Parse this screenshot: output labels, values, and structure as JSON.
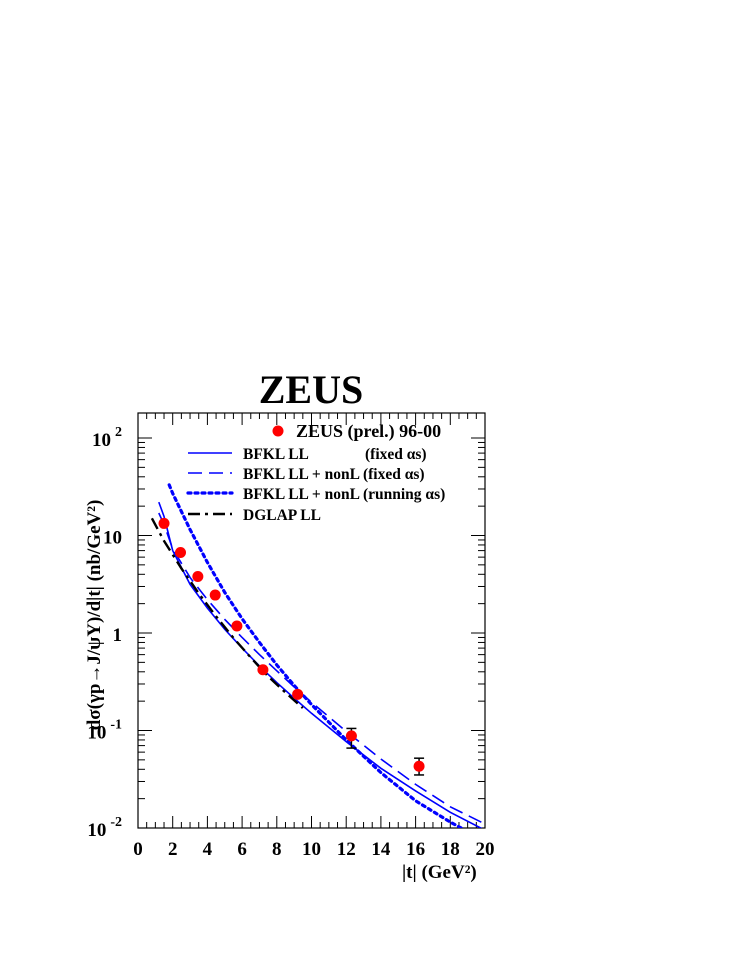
{
  "chart_data": {
    "type": "scatter",
    "title": "ZEUS",
    "xlabel": "|t| (GeV²)",
    "ylabel": "dσ(γp→J/ψY)/d|t| (nb/GeV²)",
    "xlim": [
      0,
      20
    ],
    "ylim": [
      0.01,
      180
    ],
    "y_scale": "log",
    "x_ticks": [
      "0",
      "2",
      "4",
      "6",
      "8",
      "10",
      "12",
      "14",
      "16",
      "18",
      "20"
    ],
    "y_ticks": [
      "10^-2",
      "10^-1",
      "1",
      "10",
      "10^2"
    ],
    "grid": false,
    "legend_position": "top-right",
    "series": [
      {
        "name": "ZEUS (prel.) 96-00",
        "kind": "points",
        "color": "#ff0000",
        "x": [
          1.5,
          2.45,
          3.45,
          4.45,
          5.7,
          7.2,
          9.2,
          12.3,
          16.2
        ],
        "y": [
          13.3,
          6.7,
          3.8,
          2.45,
          1.18,
          0.42,
          0.235,
          0.088,
          0.043
        ],
        "err_lo": [
          0,
          0,
          0,
          0,
          0,
          0,
          0,
          0.022,
          0.008
        ],
        "err_hi": [
          0,
          0,
          0,
          0,
          0,
          0,
          0,
          0.017,
          0.009
        ]
      },
      {
        "name": "BFKL LL (fixed αs)",
        "kind": "line",
        "style": "solid",
        "color": "#0000ff",
        "x": [
          1.2,
          1.5,
          2,
          3,
          4,
          5,
          6,
          7,
          8,
          9,
          10,
          12,
          14,
          16,
          18,
          20
        ],
        "y": [
          22,
          15.7,
          7.0,
          3.15,
          1.8,
          1.09,
          0.7,
          0.46,
          0.31,
          0.215,
          0.15,
          0.077,
          0.041,
          0.024,
          0.0145,
          0.0095
        ]
      },
      {
        "name": "BFKL LL + nonL (fixed αs)",
        "kind": "line",
        "style": "dashed",
        "color": "#0000ff",
        "x": [
          1.2,
          1.5,
          2,
          3,
          4,
          5,
          6,
          7,
          8,
          9,
          10,
          12,
          14,
          16,
          18,
          20
        ],
        "y": [
          17,
          13,
          7.3,
          3.7,
          2.2,
          1.38,
          0.9,
          0.6,
          0.41,
          0.28,
          0.195,
          0.098,
          0.051,
          0.028,
          0.0165,
          0.011
        ]
      },
      {
        "name": "BFKL LL + nonL (running αs)",
        "kind": "line",
        "style": "dotted",
        "color": "#0000ff",
        "x": [
          1.8,
          2,
          3,
          4,
          5,
          6,
          7,
          8,
          9,
          10,
          12,
          14,
          16,
          18,
          19.2
        ],
        "y": [
          33,
          27,
          11.5,
          5.3,
          2.6,
          1.4,
          0.8,
          0.47,
          0.29,
          0.185,
          0.08,
          0.037,
          0.019,
          0.0115,
          0.0088
        ]
      },
      {
        "name": "DGLAP LL",
        "kind": "line",
        "style": "dashdot",
        "color": "#000000",
        "x": [
          0.8,
          1.5,
          2.5,
          3.5,
          4.5,
          5.5,
          6.5,
          7.5,
          8.5,
          9.5
        ],
        "y": [
          15,
          8.8,
          4.6,
          2.55,
          1.48,
          0.89,
          0.56,
          0.36,
          0.245,
          0.17
        ]
      }
    ]
  },
  "legend": {
    "entries": [
      {
        "label": "ZEUS (prel.) 96-00",
        "sub": ""
      },
      {
        "label": "BFKL LL",
        "sub": "(fixed αs)"
      },
      {
        "label": "BFKL LL + nonL (fixed αs)",
        "sub": ""
      },
      {
        "label": "BFKL LL + nonL (running αs)",
        "sub": ""
      },
      {
        "label": "DGLAP LL",
        "sub": ""
      }
    ]
  }
}
